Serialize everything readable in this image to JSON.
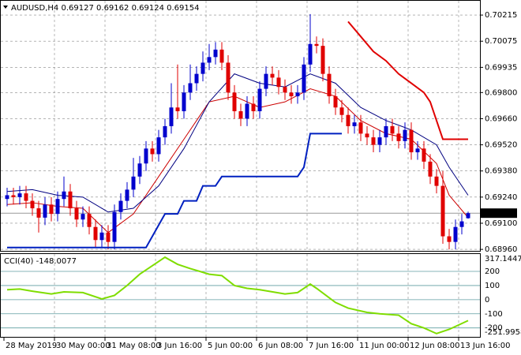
{
  "chart_data": {
    "type": "candlestick",
    "title": "AUDUSD,H4",
    "up_color": "#0000cd",
    "down_color": "#e00000",
    "open": [
      0.6923,
      0.6925,
      0.6924,
      0.6926,
      0.6922,
      0.6918,
      0.6913,
      0.692,
      0.6915,
      0.6923,
      0.6927,
      0.6918,
      0.6912,
      0.6915,
      0.6908,
      0.6901,
      0.6905,
      0.69,
      0.6916,
      0.6922,
      0.6928,
      0.6935,
      0.6942,
      0.695,
      0.6947,
      0.6956,
      0.6962,
      0.6972,
      0.697,
      0.698,
      0.6985,
      0.699,
      0.6996,
      0.6999,
      0.7003,
      0.6996,
      0.698,
      0.697,
      0.6966,
      0.6974,
      0.697,
      0.6982,
      0.699,
      0.6988,
      0.6983,
      0.698,
      0.6978,
      0.698,
      0.6995,
      0.7006,
      0.7005,
      0.699,
      0.6978,
      0.6972,
      0.6968,
      0.6962,
      0.6964,
      0.6958,
      0.6956,
      0.6952,
      0.6956,
      0.6962,
      0.6958,
      0.6954,
      0.696,
      0.6948,
      0.695,
      0.6943,
      0.6935,
      0.693,
      0.6903,
      0.69,
      0.6908,
      0.69127
    ],
    "high": [
      0.6929,
      0.6929,
      0.693,
      0.693,
      0.6926,
      0.6922,
      0.6924,
      0.6924,
      0.6927,
      0.6935,
      0.6931,
      0.6922,
      0.6919,
      0.6919,
      0.6912,
      0.6909,
      0.6909,
      0.692,
      0.6926,
      0.6932,
      0.6945,
      0.6946,
      0.6954,
      0.6954,
      0.696,
      0.6966,
      0.6985,
      0.6995,
      0.6984,
      0.6995,
      0.6994,
      0.7002,
      0.7006,
      0.7007,
      0.7007,
      0.7,
      0.6984,
      0.6974,
      0.6978,
      0.6978,
      0.6986,
      0.6994,
      0.6994,
      0.6992,
      0.6987,
      0.6984,
      0.6984,
      0.6999,
      0.7022,
      0.701,
      0.7009,
      0.6994,
      0.6982,
      0.6976,
      0.6972,
      0.6968,
      0.6968,
      0.6962,
      0.696,
      0.696,
      0.6966,
      0.6966,
      0.6962,
      0.6964,
      0.6964,
      0.6954,
      0.6954,
      0.6947,
      0.6939,
      0.6938,
      0.6907,
      0.6912,
      0.6915,
      0.69162
    ],
    "low": [
      0.6919,
      0.692,
      0.692,
      0.6918,
      0.6914,
      0.6905,
      0.6909,
      0.6911,
      0.6911,
      0.6919,
      0.6914,
      0.6908,
      0.6908,
      0.6904,
      0.6897,
      0.6897,
      0.6896,
      0.6896,
      0.6912,
      0.6918,
      0.6924,
      0.6931,
      0.6938,
      0.6943,
      0.6943,
      0.6952,
      0.6958,
      0.6966,
      0.6966,
      0.6976,
      0.6981,
      0.6986,
      0.6992,
      0.6995,
      0.6992,
      0.6976,
      0.6966,
      0.6962,
      0.6962,
      0.6966,
      0.6966,
      0.6978,
      0.6984,
      0.6979,
      0.6976,
      0.6974,
      0.6974,
      0.6976,
      0.6991,
      0.7001,
      0.6986,
      0.6974,
      0.6968,
      0.6964,
      0.6958,
      0.6958,
      0.6954,
      0.6952,
      0.6948,
      0.6948,
      0.6952,
      0.6954,
      0.695,
      0.695,
      0.6944,
      0.6944,
      0.6939,
      0.6931,
      0.6926,
      0.6899,
      0.6896,
      0.6896,
      0.6904,
      0.69124
    ],
    "close": [
      0.6925,
      0.6924,
      0.6926,
      0.6922,
      0.6918,
      0.6913,
      0.692,
      0.6915,
      0.6923,
      0.6927,
      0.6918,
      0.6912,
      0.6915,
      0.6908,
      0.6901,
      0.6905,
      0.69,
      0.6916,
      0.6922,
      0.6928,
      0.6935,
      0.6942,
      0.695,
      0.6947,
      0.6956,
      0.6962,
      0.6972,
      0.697,
      0.698,
      0.6985,
      0.699,
      0.6996,
      0.6999,
      0.7003,
      0.6996,
      0.698,
      0.697,
      0.6966,
      0.6974,
      0.697,
      0.6982,
      0.699,
      0.6988,
      0.6983,
      0.698,
      0.6978,
      0.698,
      0.6995,
      0.7006,
      0.7005,
      0.699,
      0.6978,
      0.6972,
      0.6968,
      0.6962,
      0.6964,
      0.6958,
      0.6956,
      0.6952,
      0.6956,
      0.6962,
      0.6958,
      0.6954,
      0.696,
      0.6948,
      0.695,
      0.6943,
      0.6935,
      0.693,
      0.6903,
      0.69,
      0.6908,
      0.6911,
      0.69154
    ],
    "ylim": [
      0.68952,
      0.70283
    ],
    "yticks": [
      {
        "value": 0.6896,
        "label": "0.68960"
      },
      {
        "value": 0.691,
        "label": "0.69100"
      },
      {
        "value": 0.6924,
        "label": "0.69240"
      },
      {
        "value": 0.6938,
        "label": "0.69380"
      },
      {
        "value": 0.6952,
        "label": "0.69520"
      },
      {
        "value": 0.6966,
        "label": "0.69660"
      },
      {
        "value": 0.698,
        "label": "0.69800"
      },
      {
        "value": 0.69935,
        "label": "0.69935"
      },
      {
        "value": 0.70075,
        "label": "0.70075"
      },
      {
        "value": 0.70215,
        "label": "0.70215"
      }
    ],
    "x_labels": [
      {
        "at": 0,
        "label": "28 May 2019"
      },
      {
        "at": 8,
        "label": "30 May 00:00"
      },
      {
        "at": 16,
        "label": "31 May 08:00"
      },
      {
        "at": 24,
        "label": "3 Jun 16:00"
      },
      {
        "at": 32,
        "label": "5 Jun 00:00"
      },
      {
        "at": 40,
        "label": "6 Jun 08:00"
      },
      {
        "at": 48,
        "label": "7 Jun 16:00"
      },
      {
        "at": 56,
        "label": "11 Jun 00:00"
      },
      {
        "at": 64,
        "label": "12 Jun 08:00"
      },
      {
        "at": 72,
        "label": "13 Jun 16:00"
      }
    ],
    "grid": true,
    "overlays": [
      {
        "color": "#cc0000",
        "width": 1,
        "x": [
          0,
          4,
          8,
          12,
          16,
          20,
          24,
          28,
          32,
          36,
          40,
          44,
          48,
          52,
          56,
          60,
          64,
          68,
          70,
          73
        ],
        "values": [
          0.692,
          0.6921,
          0.6919,
          0.6918,
          0.6905,
          0.6915,
          0.6935,
          0.6955,
          0.6975,
          0.6978,
          0.6972,
          0.6975,
          0.6982,
          0.6978,
          0.6965,
          0.6958,
          0.6955,
          0.6942,
          0.6925,
          0.6913
        ]
      },
      {
        "color": "#000080",
        "width": 1,
        "x": [
          0,
          4,
          8,
          12,
          16,
          20,
          24,
          28,
          32,
          36,
          40,
          44,
          48,
          52,
          56,
          60,
          64,
          68,
          70,
          73
        ],
        "values": [
          0.6927,
          0.6928,
          0.6925,
          0.6924,
          0.6916,
          0.6918,
          0.693,
          0.695,
          0.6975,
          0.699,
          0.6985,
          0.6983,
          0.699,
          0.6985,
          0.6972,
          0.6965,
          0.696,
          0.6952,
          0.694,
          0.6925
        ]
      },
      {
        "color": "#0020c0",
        "width": 2,
        "x": [
          0,
          22,
          25,
          27,
          28,
          30,
          31,
          33,
          34,
          46,
          47,
          48,
          53
        ],
        "values": [
          0.6897,
          0.6897,
          0.6915,
          0.6915,
          0.6922,
          0.6922,
          0.693,
          0.693,
          0.6935,
          0.6935,
          0.694,
          0.6958,
          0.6958
        ]
      },
      {
        "color": "#e00000",
        "width": 2,
        "x": [
          54,
          56,
          58,
          60,
          62,
          64,
          66,
          67,
          68,
          69,
          73
        ],
        "values": [
          0.7018,
          0.701,
          0.7002,
          0.6997,
          0.699,
          0.6985,
          0.698,
          0.6975,
          0.6965,
          0.6955,
          0.6955
        ]
      }
    ],
    "cci": {
      "type": "line",
      "name": "CCI(40)",
      "color": "#7fdd00",
      "x": [
        0,
        2,
        4,
        7,
        9,
        12,
        15,
        17,
        19,
        21,
        23,
        25,
        27,
        29,
        32,
        34,
        36,
        38,
        40,
        44,
        46,
        48,
        49,
        52,
        54,
        57,
        59,
        62,
        64,
        66,
        68,
        70,
        73
      ],
      "values": [
        70,
        75,
        60,
        40,
        55,
        50,
        5,
        30,
        100,
        180,
        240,
        300,
        250,
        220,
        180,
        170,
        100,
        80,
        70,
        40,
        50,
        110,
        80,
        -20,
        -60,
        -90,
        -100,
        -110,
        -170,
        -200,
        -240,
        -210,
        -148.0077
      ],
      "ylim": [
        -251.9958,
        317.1447
      ],
      "yticks": [
        200,
        100,
        0,
        -100,
        -200
      ],
      "level_color": "#5f9ea0"
    }
  }
}
